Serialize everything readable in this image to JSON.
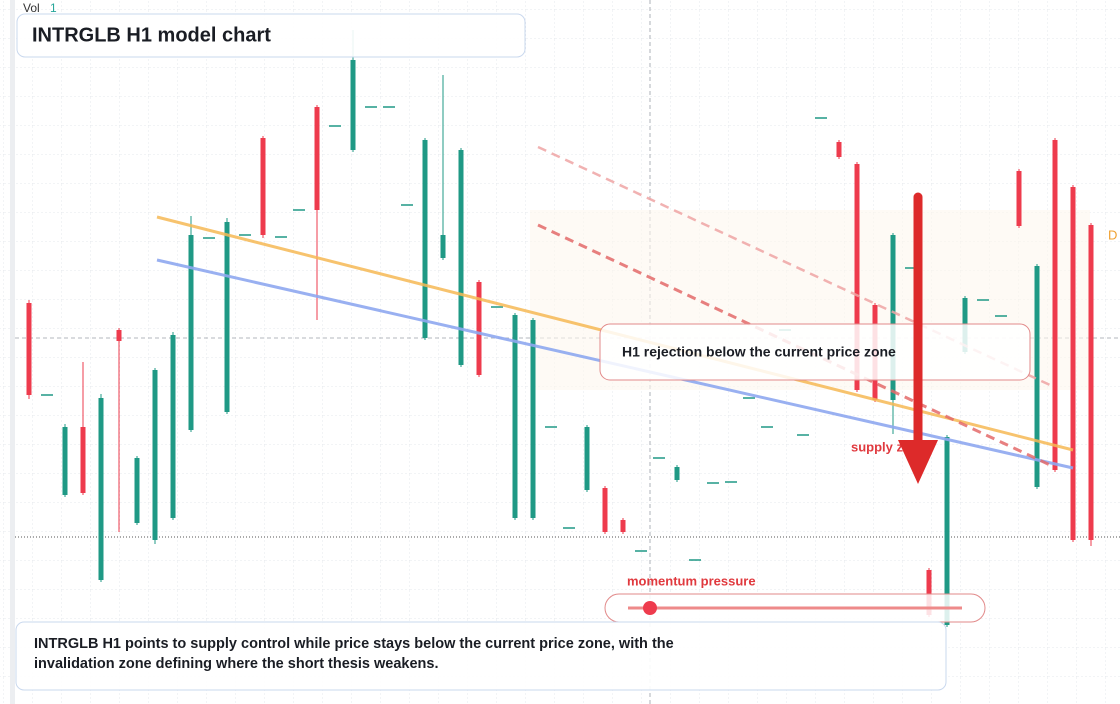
{
  "chart_data": {
    "type": "candlestick",
    "title": "INTRGLB H1 model chart",
    "volume_label": "Vol",
    "volume_value": 1,
    "edge_label": "D",
    "annotations": {
      "callout": "H1 rejection below the current price zone",
      "zone_label": "supply zone",
      "momentum_label": "momentum pressure",
      "summary": "INTRGLB H1 points to supply control while price stays below the current price zone, with the invalidation zone defining where the short thesis weakens."
    },
    "up_color": "#1f9985",
    "down_color": "#ee3b4d",
    "ylim": [
      0,
      704
    ],
    "categories": [
      null,
      null,
      null,
      null,
      null,
      null,
      null,
      null,
      null,
      null,
      null,
      null,
      null,
      null,
      null,
      null,
      null,
      null,
      null,
      null,
      null,
      null,
      null,
      null,
      null,
      null,
      null,
      null,
      null,
      null,
      null,
      null,
      null,
      null,
      null,
      null,
      null,
      null,
      null,
      null,
      null,
      null,
      null,
      null,
      null,
      null,
      null,
      null,
      null,
      null,
      null,
      null,
      null,
      null,
      null,
      null,
      null,
      null,
      null,
      null
    ],
    "open": [
      401,
      309,
      209,
      277,
      124,
      374,
      181,
      164,
      186,
      274,
      466,
      292,
      469,
      566,
      467,
      494,
      597,
      578,
      554,
      597,
      597,
      499,
      366,
      446,
      339,
      422,
      397,
      186,
      186,
      277,
      176,
      214,
      216,
      184,
      153,
      246,
      224,
      144,
      221,
      222,
      306,
      277,
      374,
      269,
      586,
      562,
      540,
      399,
      304,
      436,
      134,
      79,
      352,
      404,
      388,
      533,
      217,
      564,
      517,
      479
    ],
    "high": [
      404,
      309,
      280,
      342,
      310,
      376,
      248,
      336,
      372,
      488,
      466,
      486,
      469,
      568,
      467,
      494,
      599,
      578,
      674,
      597,
      597,
      499,
      566,
      629,
      556,
      424,
      397,
      391,
      386,
      277,
      176,
      279,
      218,
      186,
      153,
      246,
      239,
      144,
      221,
      222,
      306,
      277,
      374,
      269,
      586,
      564,
      542,
      401,
      471,
      436,
      136,
      269,
      408,
      404,
      388,
      535,
      440,
      566,
      519,
      481
    ],
    "low": [
      305,
      309,
      207,
      209,
      122,
      172,
      179,
      160,
      184,
      272,
      466,
      290,
      469,
      466,
      467,
      494,
      384,
      578,
      552,
      597,
      597,
      499,
      364,
      444,
      337,
      327,
      397,
      184,
      184,
      277,
      176,
      212,
      170,
      170,
      153,
      246,
      222,
      144,
      221,
      222,
      306,
      277,
      374,
      269,
      586,
      545,
      312,
      302,
      270,
      436,
      87,
      77,
      350,
      404,
      388,
      476,
      215,
      232,
      162,
      158
    ],
    "close": [
      309,
      309,
      277,
      211,
      306,
      363,
      246,
      334,
      369,
      469,
      466,
      482,
      469,
      469,
      467,
      494,
      494,
      578,
      644,
      597,
      597,
      499,
      564,
      469,
      554,
      329,
      397,
      389,
      384,
      277,
      176,
      277,
      172,
      172,
      153,
      246,
      237,
      144,
      221,
      222,
      306,
      277,
      374,
      269,
      586,
      547,
      314,
      304,
      469,
      436,
      89,
      267,
      406,
      404,
      388,
      478,
      438,
      234,
      164,
      164
    ]
  }
}
